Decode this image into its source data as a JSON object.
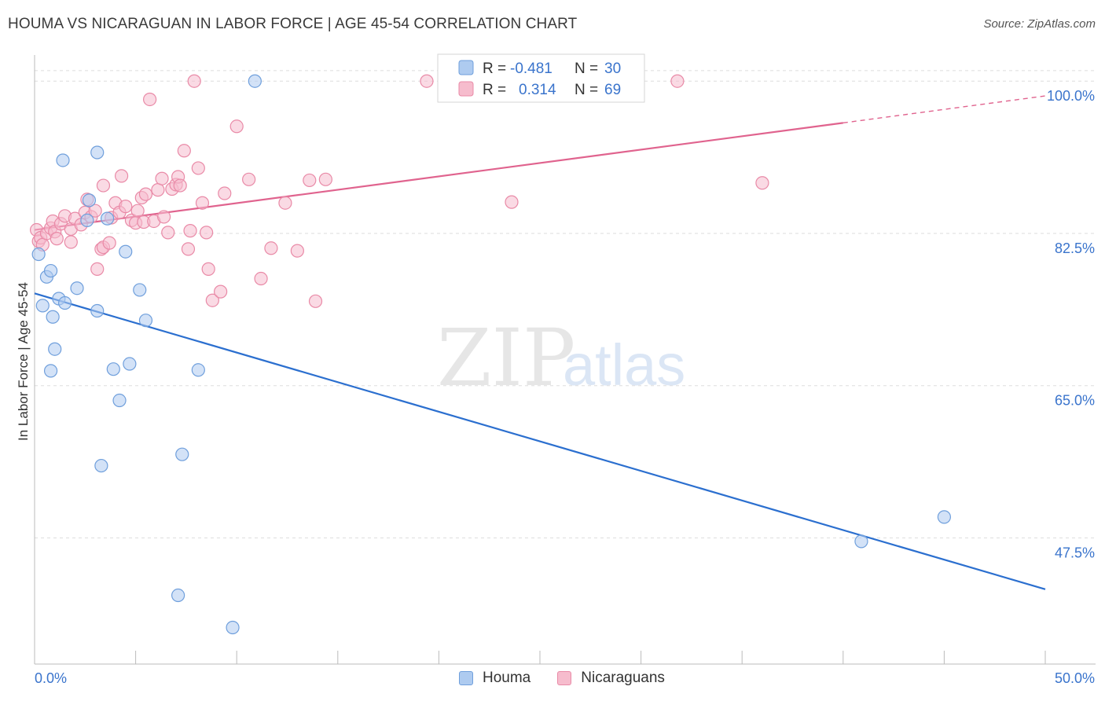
{
  "title": "HOUMA VS NICARAGUAN IN LABOR FORCE | AGE 45-54 CORRELATION CHART",
  "source": "Source: ZipAtlas.com",
  "watermark": {
    "zip": "ZIP",
    "atlas": "atlas"
  },
  "colors": {
    "houma_fill": "#aecbf0",
    "houma_stroke": "#6f9fdc",
    "houma_line": "#2b6fcf",
    "nic_fill": "#f6bccd",
    "nic_stroke": "#e98aa7",
    "nic_line": "#e0638e",
    "value_text": "#3a74cc",
    "grid": "#dddddd"
  },
  "legend_box": {
    "rows": [
      {
        "r_label": "R =",
        "r_value": "-0.481",
        "n_label": "N =",
        "n_value": "30"
      },
      {
        "r_label": "R =",
        "r_value": "0.314",
        "n_label": "N =",
        "n_value": "69"
      }
    ]
  },
  "bottom_legend": {
    "houma": "Houma",
    "nicaraguans": "Nicaraguans"
  },
  "chart_data": {
    "type": "scatter",
    "title": "HOUMA VS NICARAGUAN IN LABOR FORCE | AGE 45-54 CORRELATION CHART",
    "xlabel": "",
    "ylabel": "In Labor Force | Age 45-54",
    "xlim": [
      0,
      50
    ],
    "ylim": [
      33,
      103
    ],
    "x_tick_labels": [
      "0.0%",
      "50.0%"
    ],
    "y_ticks": [
      47.5,
      65.0,
      82.5,
      100.0
    ],
    "y_tick_labels": [
      "47.5%",
      "65.0%",
      "82.5%",
      "100.0%"
    ],
    "grid": true,
    "series": [
      {
        "name": "Houma",
        "points": [
          [
            0.2,
            80.1
          ],
          [
            0.4,
            74.2
          ],
          [
            0.6,
            77.5
          ],
          [
            0.8,
            78.2
          ],
          [
            0.9,
            72.9
          ],
          [
            1.0,
            69.2
          ],
          [
            0.8,
            66.7
          ],
          [
            1.2,
            75.0
          ],
          [
            1.4,
            90.9
          ],
          [
            1.5,
            74.5
          ],
          [
            2.1,
            76.2
          ],
          [
            2.6,
            84.0
          ],
          [
            2.7,
            86.3
          ],
          [
            3.1,
            91.8
          ],
          [
            3.1,
            73.6
          ],
          [
            3.3,
            55.8
          ],
          [
            3.6,
            84.2
          ],
          [
            3.9,
            66.9
          ],
          [
            4.2,
            63.3
          ],
          [
            4.5,
            80.4
          ],
          [
            4.7,
            67.5
          ],
          [
            5.2,
            76.0
          ],
          [
            5.5,
            72.5
          ],
          [
            7.1,
            40.9
          ],
          [
            7.3,
            57.1
          ],
          [
            8.1,
            66.8
          ],
          [
            9.8,
            37.2
          ],
          [
            10.9,
            100.0
          ],
          [
            40.9,
            47.1
          ],
          [
            45.0,
            49.9
          ]
        ],
        "trend": {
          "x0": 0,
          "y0": 75.6,
          "x1": 50,
          "y1": 41.6
        }
      },
      {
        "name": "Nicaraguans",
        "points": [
          [
            0.1,
            82.9
          ],
          [
            0.2,
            81.6
          ],
          [
            0.3,
            82.0
          ],
          [
            0.4,
            81.2
          ],
          [
            0.6,
            82.5
          ],
          [
            0.8,
            83.1
          ],
          [
            0.9,
            83.9
          ],
          [
            1.0,
            82.7
          ],
          [
            1.1,
            81.9
          ],
          [
            1.3,
            83.6
          ],
          [
            1.5,
            84.5
          ],
          [
            1.8,
            83.0
          ],
          [
            1.8,
            81.5
          ],
          [
            2.0,
            84.2
          ],
          [
            2.3,
            83.5
          ],
          [
            2.5,
            84.9
          ],
          [
            2.6,
            86.4
          ],
          [
            2.8,
            84.4
          ],
          [
            3.0,
            85.1
          ],
          [
            3.1,
            78.4
          ],
          [
            3.3,
            80.7
          ],
          [
            3.4,
            80.9
          ],
          [
            3.4,
            88.0
          ],
          [
            3.7,
            81.4
          ],
          [
            3.8,
            84.3
          ],
          [
            4.0,
            86.0
          ],
          [
            4.2,
            84.9
          ],
          [
            4.3,
            89.1
          ],
          [
            4.5,
            85.6
          ],
          [
            4.8,
            84.0
          ],
          [
            5.0,
            83.7
          ],
          [
            5.1,
            85.1
          ],
          [
            5.3,
            86.6
          ],
          [
            5.4,
            83.8
          ],
          [
            5.5,
            87.0
          ],
          [
            5.7,
            97.9
          ],
          [
            5.9,
            83.9
          ],
          [
            6.1,
            87.5
          ],
          [
            6.3,
            88.8
          ],
          [
            6.4,
            84.4
          ],
          [
            6.6,
            82.6
          ],
          [
            6.8,
            87.6
          ],
          [
            7.0,
            88.1
          ],
          [
            7.1,
            89.0
          ],
          [
            7.2,
            88.0
          ],
          [
            7.4,
            92.0
          ],
          [
            7.6,
            80.7
          ],
          [
            7.7,
            82.8
          ],
          [
            7.9,
            100.0
          ],
          [
            8.1,
            90.0
          ],
          [
            8.3,
            86.0
          ],
          [
            8.5,
            82.6
          ],
          [
            8.6,
            78.4
          ],
          [
            8.8,
            74.8
          ],
          [
            9.2,
            75.8
          ],
          [
            9.4,
            87.1
          ],
          [
            10.0,
            94.8
          ],
          [
            10.6,
            88.7
          ],
          [
            11.2,
            77.3
          ],
          [
            11.7,
            80.8
          ],
          [
            12.4,
            86.0
          ],
          [
            13.0,
            80.5
          ],
          [
            13.6,
            88.6
          ],
          [
            13.9,
            74.7
          ],
          [
            14.4,
            88.7
          ],
          [
            19.4,
            100.0
          ],
          [
            23.6,
            86.1
          ],
          [
            31.8,
            100.0
          ],
          [
            36.0,
            88.3
          ]
        ],
        "trend": {
          "x0": 0,
          "y0": 82.9,
          "x1": 40,
          "y1": 95.2,
          "dash_to_x": 50,
          "dash_to_y": 98.3
        }
      }
    ]
  }
}
